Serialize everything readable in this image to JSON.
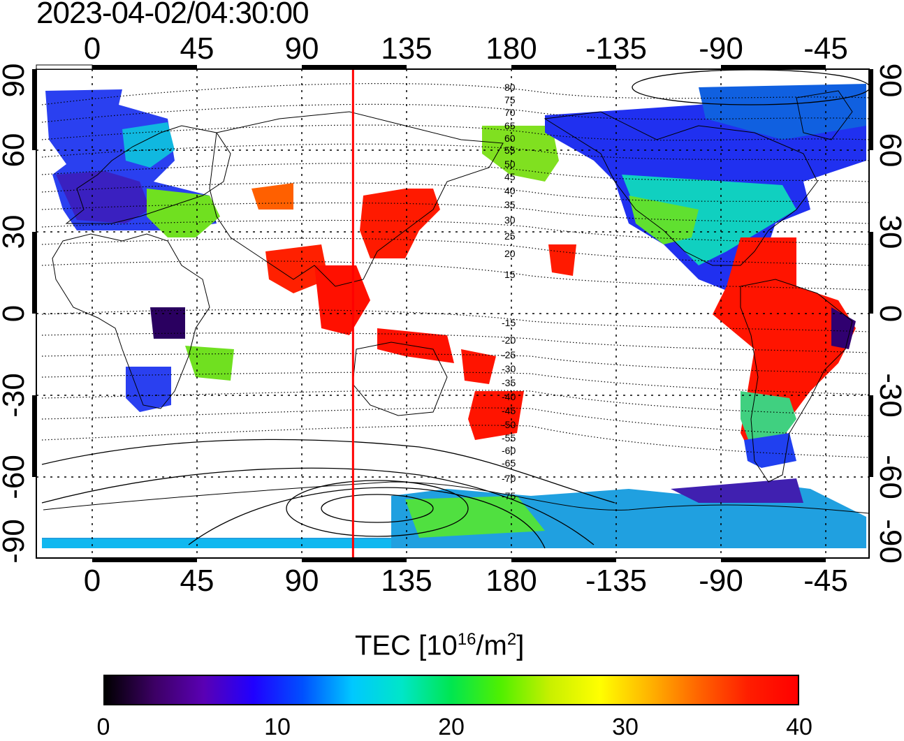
{
  "timestamp": "2023-04-02/04:30:00",
  "map": {
    "quantity": "TEC",
    "top_lon_ticks": [
      "0",
      "45",
      "90",
      "135",
      "180",
      "-135",
      "-90",
      "-45"
    ],
    "bottom_lon_ticks": [
      "0",
      "45",
      "90",
      "135",
      "180",
      "-135",
      "-90",
      "-45"
    ],
    "left_lat_ticks": [
      "90",
      "60",
      "30",
      "0",
      "-30",
      "-60",
      "-90"
    ],
    "right_lat_ticks": [
      "90",
      "60",
      "30",
      "0",
      "-30",
      "-60",
      "-90"
    ],
    "terminator_longitude": 112,
    "terminator_color": "#ff0000",
    "magnetic_lat_contours_north": [
      "80",
      "75",
      "70",
      "65",
      "60",
      "55",
      "50",
      "45",
      "40",
      "35",
      "30",
      "25",
      "20",
      "15"
    ],
    "magnetic_lat_contours_south": [
      "-15",
      "-20",
      "-25",
      "-30",
      "-35",
      "-40",
      "-45",
      "-50",
      "-55",
      "-60",
      "-65",
      "-70",
      "-75"
    ]
  },
  "colorbar": {
    "title_main": "TEC  [10",
    "title_exp1": "16",
    "title_mid": "/m",
    "title_exp2": "2",
    "title_end": "]",
    "min": 0,
    "max": 40,
    "tick_labels": [
      "0",
      "10",
      "20",
      "30",
      "40"
    ],
    "colors": [
      "#000000",
      "#3c0064",
      "#5a00b4",
      "#2000ff",
      "#0050ff",
      "#00c8ff",
      "#00e6c8",
      "#00e650",
      "#50f000",
      "#c8f000",
      "#ffff00",
      "#ffb400",
      "#ff6400",
      "#ff1e00",
      "#ff0000"
    ]
  }
}
